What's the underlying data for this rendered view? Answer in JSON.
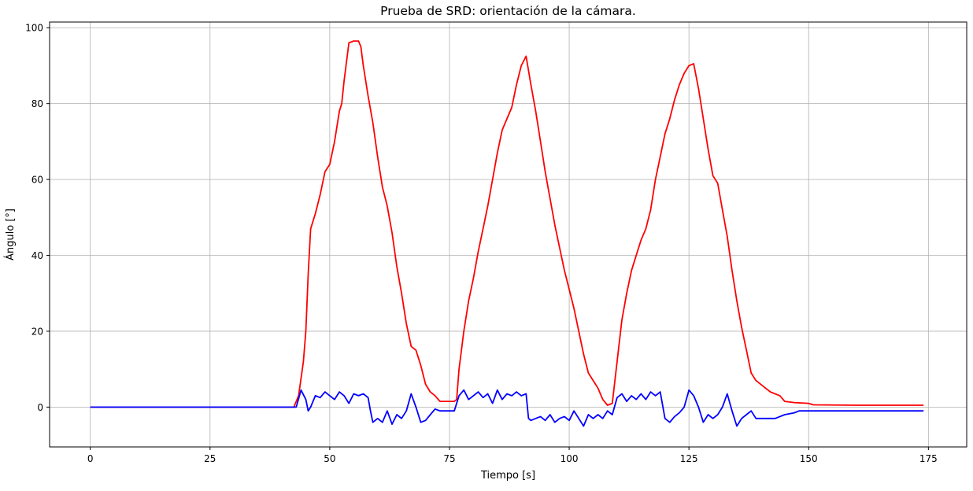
{
  "chart_data": {
    "type": "line",
    "title": "Prueba de SRD: orientación de la cámara.",
    "xlabel": "Tiempo [s]",
    "ylabel": "Ángulo [°]",
    "xlim": [
      -8.5,
      183
    ],
    "ylim": [
      -10.5,
      101.5
    ],
    "xticks": [
      0,
      25,
      50,
      75,
      100,
      125,
      150,
      175
    ],
    "yticks": [
      0,
      20,
      40,
      60,
      80,
      100
    ],
    "grid": true,
    "legend": "none",
    "series": [
      {
        "color": "#ff0000",
        "points": [
          [
            0,
            0
          ],
          [
            42.5,
            0
          ],
          [
            43.5,
            3
          ],
          [
            44.5,
            12
          ],
          [
            45,
            20
          ],
          [
            45.5,
            35
          ],
          [
            46,
            47
          ],
          [
            47,
            51
          ],
          [
            48,
            56
          ],
          [
            49,
            62
          ],
          [
            50,
            64
          ],
          [
            51,
            70
          ],
          [
            52,
            78
          ],
          [
            52.5,
            80
          ],
          [
            53,
            86
          ],
          [
            54,
            96
          ],
          [
            55,
            96.5
          ],
          [
            56,
            96.5
          ],
          [
            56.5,
            95
          ],
          [
            57,
            90
          ],
          [
            58,
            82
          ],
          [
            59,
            75
          ],
          [
            60,
            66
          ],
          [
            61,
            58
          ],
          [
            62,
            53
          ],
          [
            63,
            46
          ],
          [
            64,
            37
          ],
          [
            65,
            30
          ],
          [
            66,
            22
          ],
          [
            67,
            16
          ],
          [
            68,
            15
          ],
          [
            69,
            11
          ],
          [
            70,
            6
          ],
          [
            71,
            4
          ],
          [
            72,
            3
          ],
          [
            73,
            1.5
          ],
          [
            76,
            1.5
          ],
          [
            76.5,
            2
          ],
          [
            77,
            10
          ],
          [
            78,
            20
          ],
          [
            79,
            28
          ],
          [
            80,
            34
          ],
          [
            81,
            41
          ],
          [
            82,
            47
          ],
          [
            83,
            53
          ],
          [
            84,
            60
          ],
          [
            85,
            67
          ],
          [
            86,
            73
          ],
          [
            87,
            76
          ],
          [
            88,
            79
          ],
          [
            89,
            85
          ],
          [
            90,
            90
          ],
          [
            91,
            92.5
          ],
          [
            92,
            85
          ],
          [
            93,
            78
          ],
          [
            94,
            70
          ],
          [
            95,
            62
          ],
          [
            96,
            55
          ],
          [
            97,
            48
          ],
          [
            98,
            42
          ],
          [
            99,
            36
          ],
          [
            100,
            31
          ],
          [
            101,
            26
          ],
          [
            102,
            20
          ],
          [
            103,
            14
          ],
          [
            104,
            9
          ],
          [
            105,
            7
          ],
          [
            106,
            5
          ],
          [
            107,
            2
          ],
          [
            108,
            0.5
          ],
          [
            109,
            1
          ],
          [
            110,
            12
          ],
          [
            111,
            23
          ],
          [
            112,
            30
          ],
          [
            113,
            36
          ],
          [
            114,
            40
          ],
          [
            115,
            44
          ],
          [
            116,
            47
          ],
          [
            117,
            52
          ],
          [
            118,
            60
          ],
          [
            119,
            66
          ],
          [
            120,
            72
          ],
          [
            121,
            76
          ],
          [
            122,
            81
          ],
          [
            123,
            85
          ],
          [
            124,
            88
          ],
          [
            125,
            90
          ],
          [
            126,
            90.5
          ],
          [
            127,
            84
          ],
          [
            128,
            76
          ],
          [
            129,
            68
          ],
          [
            130,
            61
          ],
          [
            131,
            59
          ],
          [
            132,
            52
          ],
          [
            133,
            45
          ],
          [
            134,
            36
          ],
          [
            135,
            28
          ],
          [
            136,
            21
          ],
          [
            137,
            15
          ],
          [
            138,
            9
          ],
          [
            139,
            7
          ],
          [
            140,
            6
          ],
          [
            141,
            5
          ],
          [
            142,
            4
          ],
          [
            143,
            3.5
          ],
          [
            144,
            3
          ],
          [
            145,
            1.5
          ],
          [
            147,
            1.2
          ],
          [
            150,
            1
          ],
          [
            151,
            0.6
          ],
          [
            160,
            0.5
          ],
          [
            174,
            0.5
          ]
        ]
      },
      {
        "color": "#0000ff",
        "points": [
          [
            0,
            0
          ],
          [
            43,
            0
          ],
          [
            44,
            4.5
          ],
          [
            45,
            2
          ],
          [
            45.5,
            -1
          ],
          [
            46,
            0
          ],
          [
            47,
            3
          ],
          [
            48,
            2.5
          ],
          [
            49,
            4
          ],
          [
            50,
            3
          ],
          [
            51,
            2
          ],
          [
            52,
            4
          ],
          [
            53,
            3
          ],
          [
            54,
            1
          ],
          [
            55,
            3.5
          ],
          [
            56,
            3
          ],
          [
            57,
            3.5
          ],
          [
            58,
            2.5
          ],
          [
            58.5,
            -1
          ],
          [
            59,
            -4
          ],
          [
            60,
            -3
          ],
          [
            61,
            -4
          ],
          [
            62,
            -1
          ],
          [
            63,
            -4.5
          ],
          [
            64,
            -2
          ],
          [
            65,
            -3
          ],
          [
            66,
            -1
          ],
          [
            67,
            3.5
          ],
          [
            68,
            0
          ],
          [
            69,
            -4
          ],
          [
            70,
            -3.5
          ],
          [
            71,
            -2
          ],
          [
            72,
            -0.5
          ],
          [
            73,
            -1
          ],
          [
            76,
            -1
          ],
          [
            77,
            3
          ],
          [
            78,
            4.5
          ],
          [
            79,
            2
          ],
          [
            80,
            3
          ],
          [
            81,
            4
          ],
          [
            82,
            2.5
          ],
          [
            83,
            3.5
          ],
          [
            84,
            1
          ],
          [
            85,
            4.5
          ],
          [
            86,
            2
          ],
          [
            87,
            3.5
          ],
          [
            88,
            3
          ],
          [
            89,
            4
          ],
          [
            90,
            3
          ],
          [
            91,
            3.5
          ],
          [
            91.5,
            -3
          ],
          [
            92,
            -3.5
          ],
          [
            93,
            -3
          ],
          [
            94,
            -2.5
          ],
          [
            95,
            -3.5
          ],
          [
            96,
            -2
          ],
          [
            97,
            -4
          ],
          [
            98,
            -3
          ],
          [
            99,
            -2.5
          ],
          [
            100,
            -3.5
          ],
          [
            101,
            -1
          ],
          [
            102,
            -3
          ],
          [
            103,
            -5
          ],
          [
            104,
            -2
          ],
          [
            105,
            -3
          ],
          [
            106,
            -2
          ],
          [
            107,
            -3
          ],
          [
            108,
            -1
          ],
          [
            109,
            -2
          ],
          [
            110,
            2.5
          ],
          [
            111,
            3.5
          ],
          [
            112,
            1.5
          ],
          [
            113,
            3
          ],
          [
            114,
            2
          ],
          [
            115,
            3.5
          ],
          [
            116,
            2
          ],
          [
            117,
            4
          ],
          [
            118,
            3
          ],
          [
            119,
            4
          ],
          [
            120,
            -3
          ],
          [
            121,
            -4
          ],
          [
            122,
            -2.5
          ],
          [
            123,
            -1.5
          ],
          [
            124,
            0
          ],
          [
            125,
            4.5
          ],
          [
            126,
            3
          ],
          [
            127,
            0
          ],
          [
            128,
            -4
          ],
          [
            129,
            -2
          ],
          [
            130,
            -3
          ],
          [
            131,
            -2
          ],
          [
            132,
            0
          ],
          [
            133,
            3.5
          ],
          [
            134,
            -1
          ],
          [
            135,
            -5
          ],
          [
            136,
            -3
          ],
          [
            137,
            -2
          ],
          [
            138,
            -1
          ],
          [
            139,
            -3
          ],
          [
            143,
            -3
          ],
          [
            145,
            -2
          ],
          [
            147,
            -1.5
          ],
          [
            148,
            -1
          ],
          [
            174,
            -1
          ]
        ]
      }
    ]
  }
}
